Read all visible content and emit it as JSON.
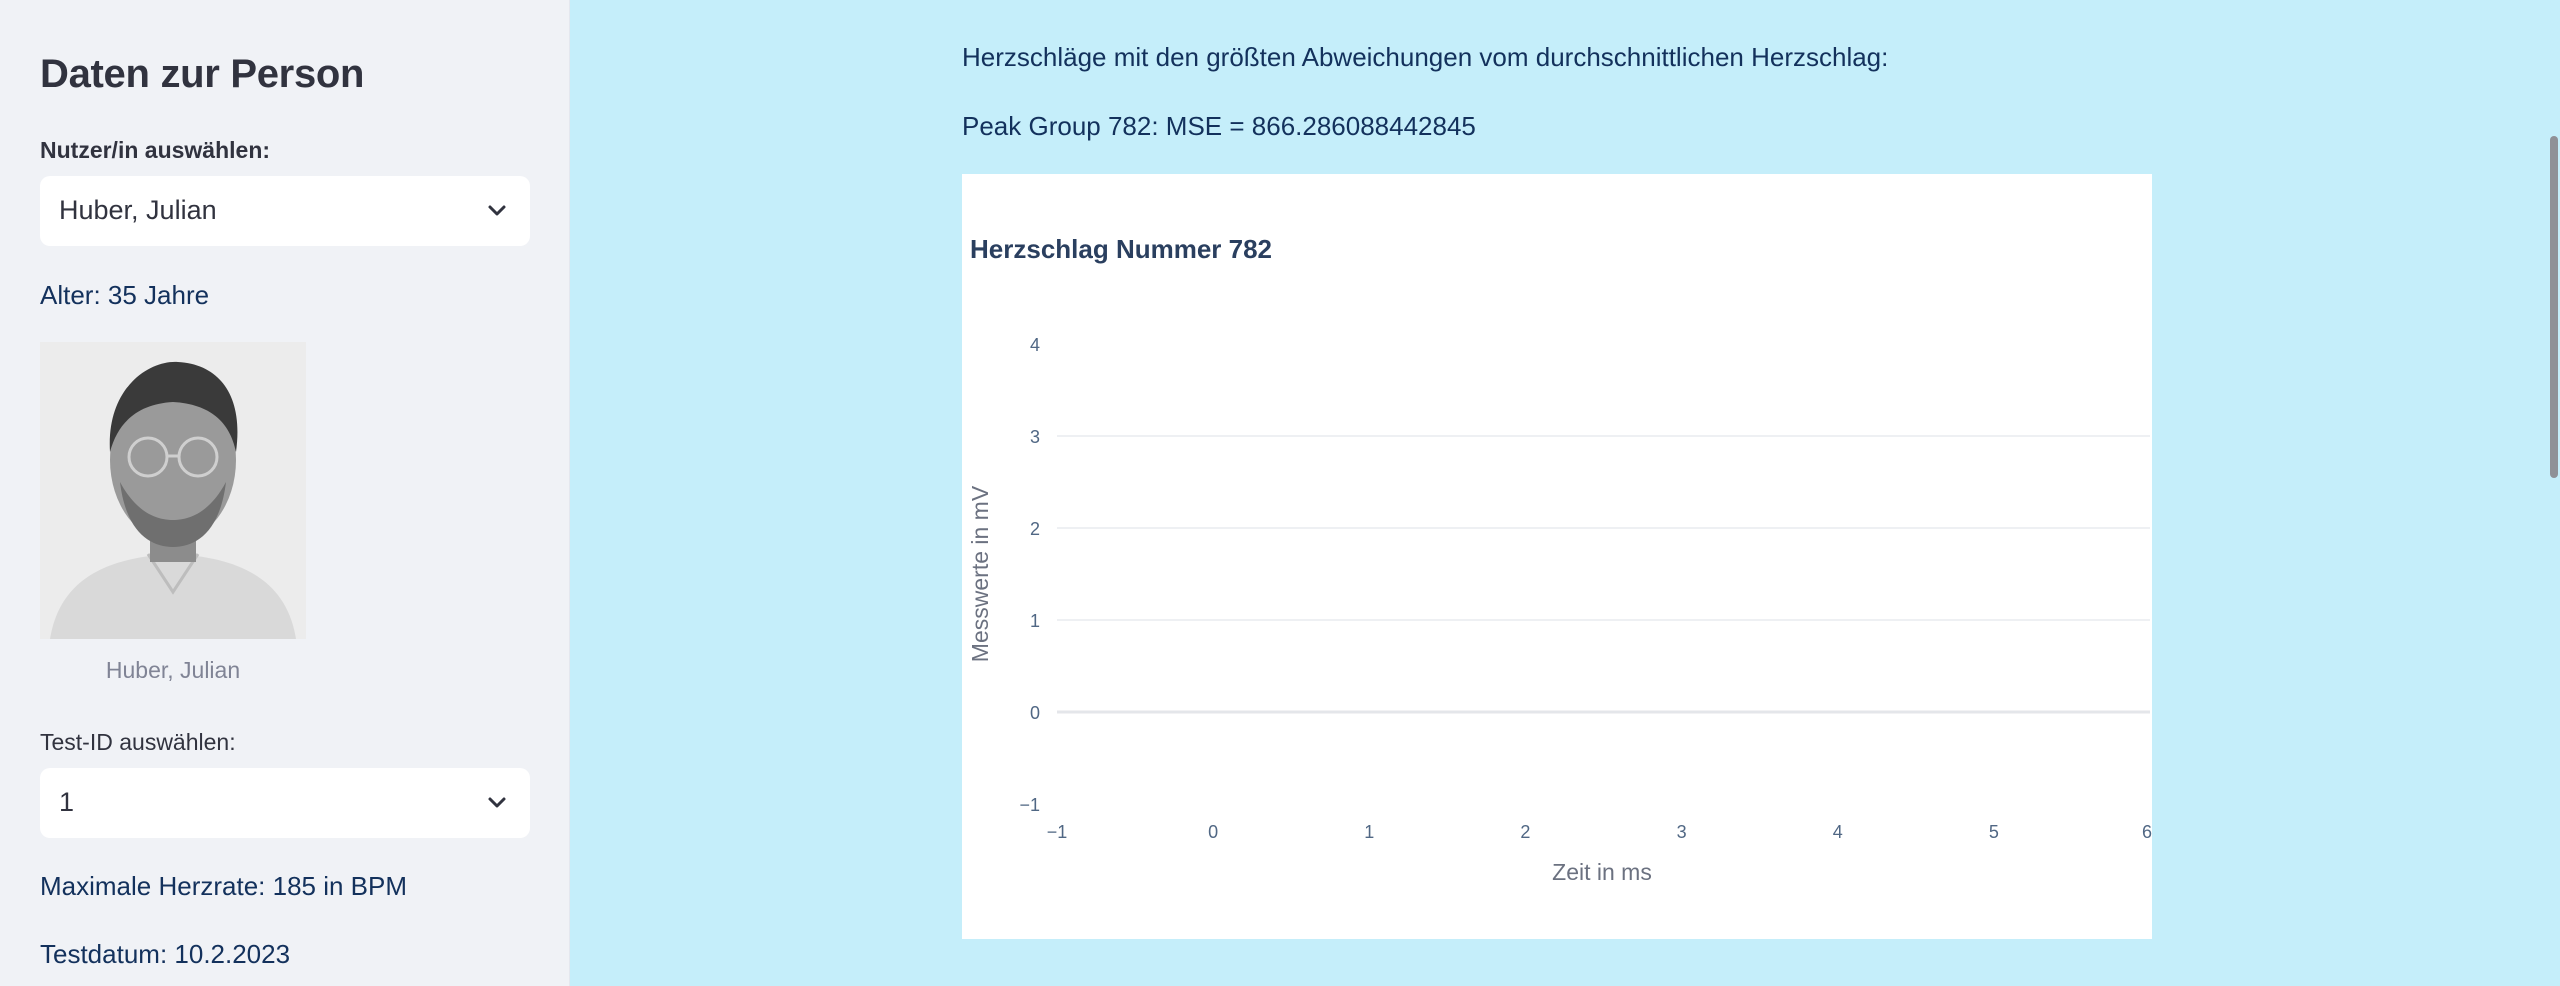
{
  "sidebar": {
    "title": "Daten zur Person",
    "user_label": "Nutzer/in auswählen:",
    "user_value": "Huber, Julian",
    "age_text": "Alter: 35 Jahre",
    "photo_caption": "Huber, Julian",
    "test_label": "Test-ID auswählen:",
    "test_value": "1",
    "max_hr_text": "Maximale Herzrate: 185 in BPM",
    "test_date_text": "Testdatum: 10.2.2023"
  },
  "main": {
    "heading_text": "Herzschläge mit den größten Abweichungen vom durchschnittlichen Herzschlag:",
    "peak_text": "Peak Group 782: MSE = 866.286088442845"
  },
  "chart_data": {
    "type": "line",
    "title": "Herzschlag Nummer 782",
    "xlabel": "Zeit in ms",
    "ylabel": "Messwerte in mV",
    "xlim": [
      -1,
      6
    ],
    "ylim": [
      -1,
      4
    ],
    "x_ticks": [
      "−1",
      "0",
      "1",
      "2",
      "3",
      "4",
      "5",
      "6"
    ],
    "y_ticks": [
      "−1",
      "0",
      "1",
      "2",
      "3",
      "4"
    ],
    "grid": true,
    "series": []
  },
  "colors": {
    "sidebar_bg": "#f0f2f6",
    "main_bg": "#c5eefa",
    "text_dark": "#31333f",
    "text_blue": "#13315c",
    "muted": "#808495"
  },
  "icons": {
    "dropdown": "chevron-down-icon"
  }
}
